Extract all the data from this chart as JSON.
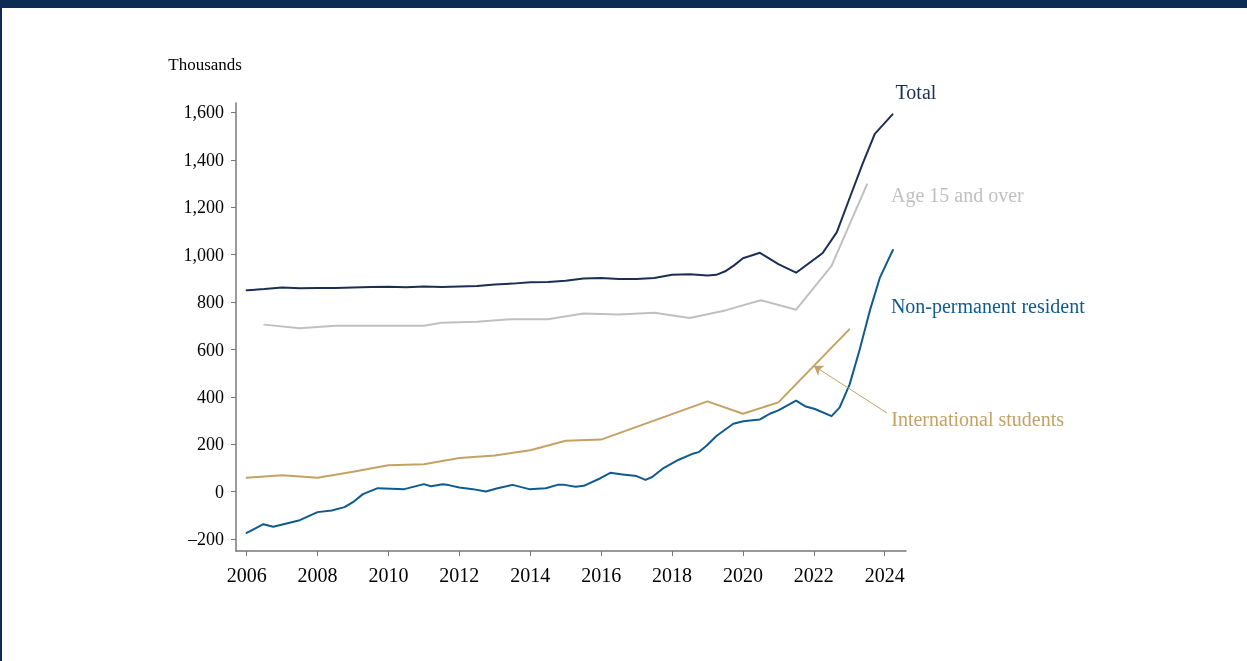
{
  "chart_data": {
    "type": "line",
    "ylabel": "Thousands",
    "xlim": [
      2005.7,
      2024.6
    ],
    "xticks": [
      2006,
      2008,
      2010,
      2012,
      2014,
      2016,
      2018,
      2020,
      2022,
      2024
    ],
    "ylim": [
      -250,
      1640
    ],
    "yticks": [
      {
        "value": -200,
        "label": "–200"
      },
      0,
      200,
      400,
      600,
      800,
      {
        "value": 1000,
        "label": "1,000"
      },
      {
        "value": 1200,
        "label": "1,200"
      },
      {
        "value": 1400,
        "label": "1,400"
      },
      {
        "value": 1600,
        "label": "1,600"
      }
    ],
    "grid": false,
    "legend": false,
    "marker": "none",
    "line_style": "solid",
    "series": [
      {
        "name": "Total",
        "color": "#1b2f55",
        "x": [
          2006,
          2006.5,
          2007,
          2007.5,
          2008,
          2008.5,
          2009,
          2009.5,
          2010,
          2010.5,
          2011,
          2011.5,
          2012,
          2012.5,
          2013,
          2013.5,
          2014,
          2014.5,
          2015,
          2015.5,
          2016,
          2016.5,
          2017,
          2017.5,
          2018,
          2018.5,
          2019,
          2019.25,
          2019.5,
          2019.75,
          2020,
          2020.48,
          2021,
          2021.5,
          2022.25,
          2022.65,
          2023,
          2023.38,
          2023.72,
          2024.22
        ],
        "values": [
          850,
          855,
          862,
          858,
          860,
          860,
          862,
          864,
          865,
          863,
          866,
          864,
          866,
          868,
          874,
          878,
          884,
          885,
          890,
          900,
          902,
          898,
          897,
          902,
          915,
          918,
          912,
          915,
          930,
          955,
          985,
          1008,
          960,
          924,
          1007,
          1095,
          1235,
          1385,
          1510,
          1592
        ]
      },
      {
        "name": "Age 15 and over",
        "color": "#c0c0c0",
        "x": [
          2006.5,
          2007.5,
          2008.5,
          2010,
          2011,
          2011.5,
          2012.5,
          2013.5,
          2014.5,
          2015.5,
          2016.5,
          2017.5,
          2018.5,
          2019.5,
          2020.5,
          2021.5,
          2022.5,
          2023.5
        ],
        "values": [
          705,
          690,
          700,
          700,
          700,
          713,
          717,
          728,
          728,
          752,
          748,
          755,
          733,
          765,
          808,
          768,
          953,
          1297
        ]
      },
      {
        "name": "Non-permanent resident",
        "color": "#0f5a8f",
        "x": [
          2006,
          2006.47,
          2006.75,
          2007.5,
          2008,
          2008.4,
          2008.76,
          2009,
          2009.28,
          2009.7,
          2010.45,
          2011,
          2011.2,
          2011.53,
          2011.7,
          2012,
          2012.38,
          2012.75,
          2013.08,
          2013.5,
          2013.97,
          2014.44,
          2014.77,
          2014.97,
          2015.28,
          2015.51,
          2015.98,
          2016.26,
          2016.6,
          2017,
          2017.25,
          2017.44,
          2017.77,
          2018.19,
          2018.56,
          2018.75,
          2018.98,
          2019.26,
          2019.73,
          2020.01,
          2020.48,
          2020.76,
          2021,
          2021.5,
          2021.75,
          2022.03,
          2022.5,
          2022.73,
          2023.01,
          2023.29,
          2023.58,
          2023.86,
          2024.23
        ],
        "values": [
          -174,
          -137,
          -148,
          -120,
          -86,
          -79,
          -65,
          -44,
          -10,
          15,
          11,
          32,
          23,
          32,
          28,
          18,
          11,
          1,
          15,
          29,
          11,
          15,
          29,
          29,
          21,
          25,
          57,
          80,
          73,
          66,
          50,
          62,
          101,
          135,
          159,
          167,
          195,
          236,
          287,
          297,
          305,
          329,
          343,
          384,
          361,
          349,
          319,
          356,
          453,
          598,
          764,
          902,
          1020
        ]
      },
      {
        "name": "International students",
        "color": "#c4a264",
        "x": [
          2006,
          2007,
          2008,
          2009,
          2010,
          2011,
          2012,
          2013,
          2014,
          2015,
          2016,
          2019,
          2020,
          2021,
          2023
        ],
        "values": [
          59,
          70,
          59,
          84,
          112,
          116,
          142,
          153,
          175,
          215,
          220,
          381,
          329,
          377,
          685
        ]
      }
    ]
  }
}
